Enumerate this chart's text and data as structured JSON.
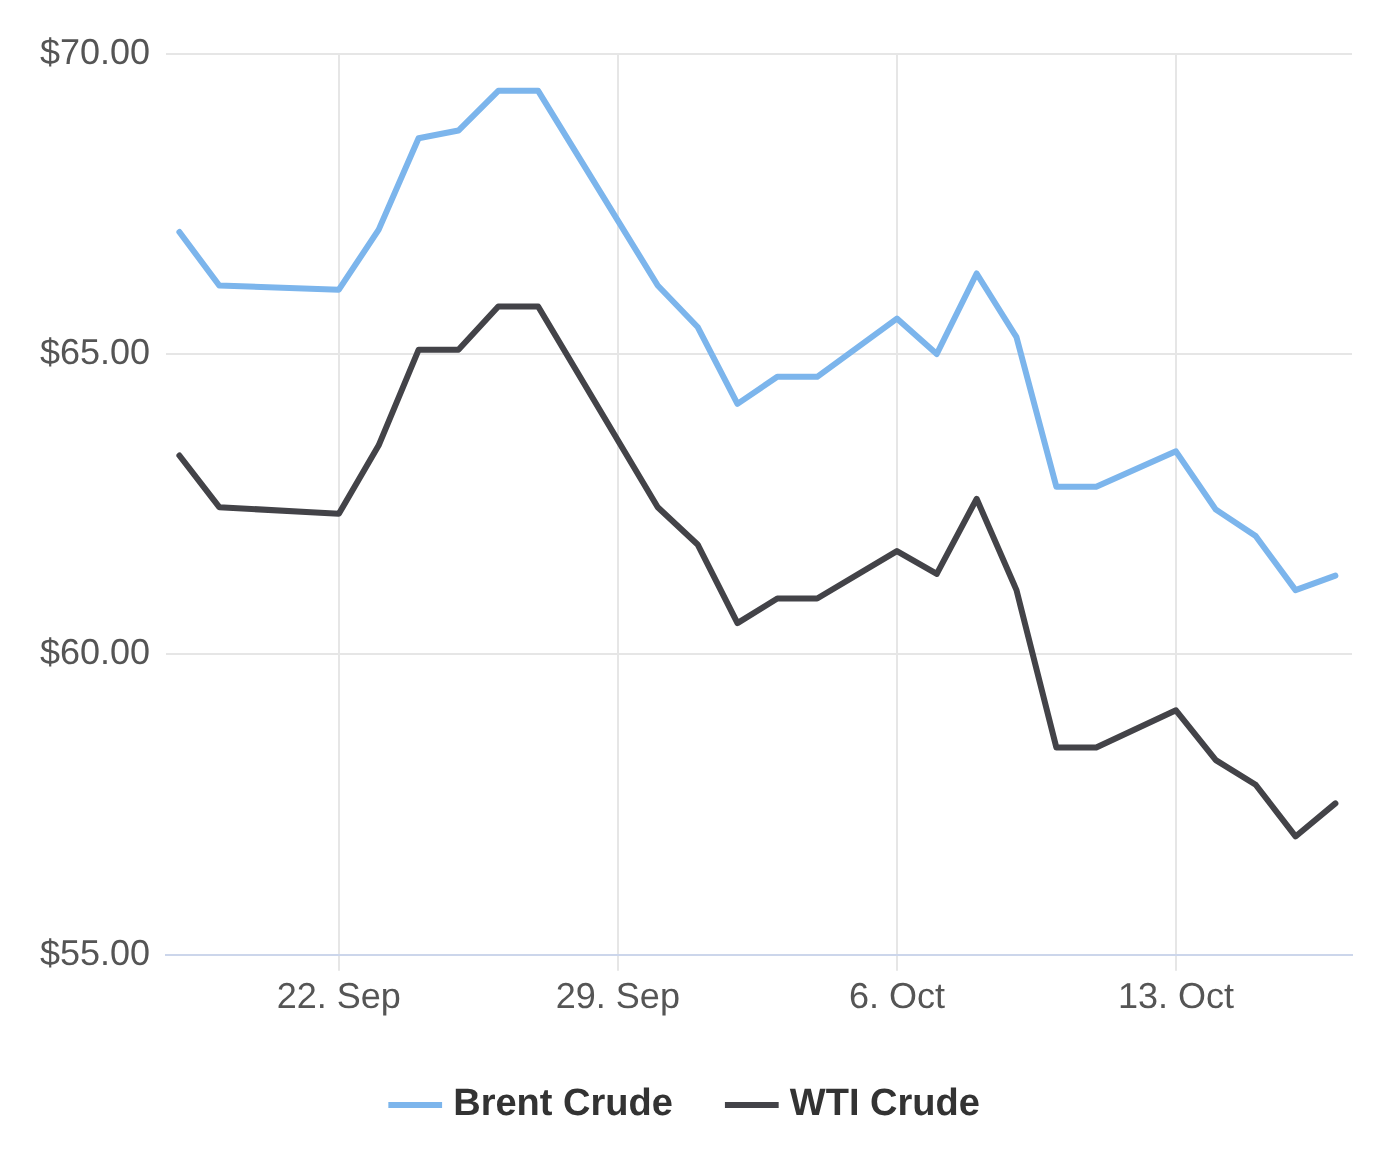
{
  "chart_data": {
    "type": "line",
    "x": [
      "--09-18",
      "--09-19",
      "--09-22",
      "--09-23",
      "--09-24",
      "--09-25",
      "--09-26",
      "--09-27",
      "--09-30",
      "--10-01",
      "--10-02",
      "--10-03",
      "--10-04",
      "--10-06",
      "--10-07",
      "--10-08",
      "--10-09",
      "--10-10",
      "--10-11",
      "--10-13",
      "--10-14",
      "--10-15",
      "--10-16",
      "--10-17"
    ],
    "series": [
      {
        "name": "Brent Crude",
        "color": "#7cb5ec",
        "values": [
          67.03,
          66.14,
          66.07,
          67.07,
          68.59,
          68.72,
          69.38,
          69.38,
          66.14,
          65.45,
          64.17,
          64.62,
          64.62,
          65.59,
          65.0,
          66.34,
          65.28,
          62.79,
          62.79,
          63.38,
          62.41,
          61.97,
          61.07,
          61.31
        ]
      },
      {
        "name": "WTI Crude",
        "color": "#434348",
        "values": [
          63.31,
          62.45,
          62.34,
          63.48,
          65.07,
          65.07,
          65.79,
          65.79,
          62.45,
          61.83,
          60.52,
          60.93,
          60.93,
          61.72,
          61.34,
          62.59,
          61.07,
          58.45,
          58.45,
          59.07,
          58.24,
          57.83,
          56.97,
          57.52
        ]
      }
    ],
    "xlim": [
      "--09-17T16:00",
      "--10-17T10:00"
    ],
    "xticks": [
      {
        "value": "--09-22",
        "label": "22. Sep"
      },
      {
        "value": "--09-29",
        "label": "29. Sep"
      },
      {
        "value": "--10-06",
        "label": "6. Oct"
      },
      {
        "value": "--10-13",
        "label": "13. Oct"
      }
    ],
    "ylim": [
      55,
      70
    ],
    "yticks": [
      {
        "value": 55,
        "label": "$55.00"
      },
      {
        "value": 60,
        "label": "$60.00"
      },
      {
        "value": 65,
        "label": "$65.00"
      },
      {
        "value": 70,
        "label": "$70.00"
      }
    ],
    "grid": true,
    "legend": "bottom",
    "marker": "none",
    "line_style": "solid"
  }
}
